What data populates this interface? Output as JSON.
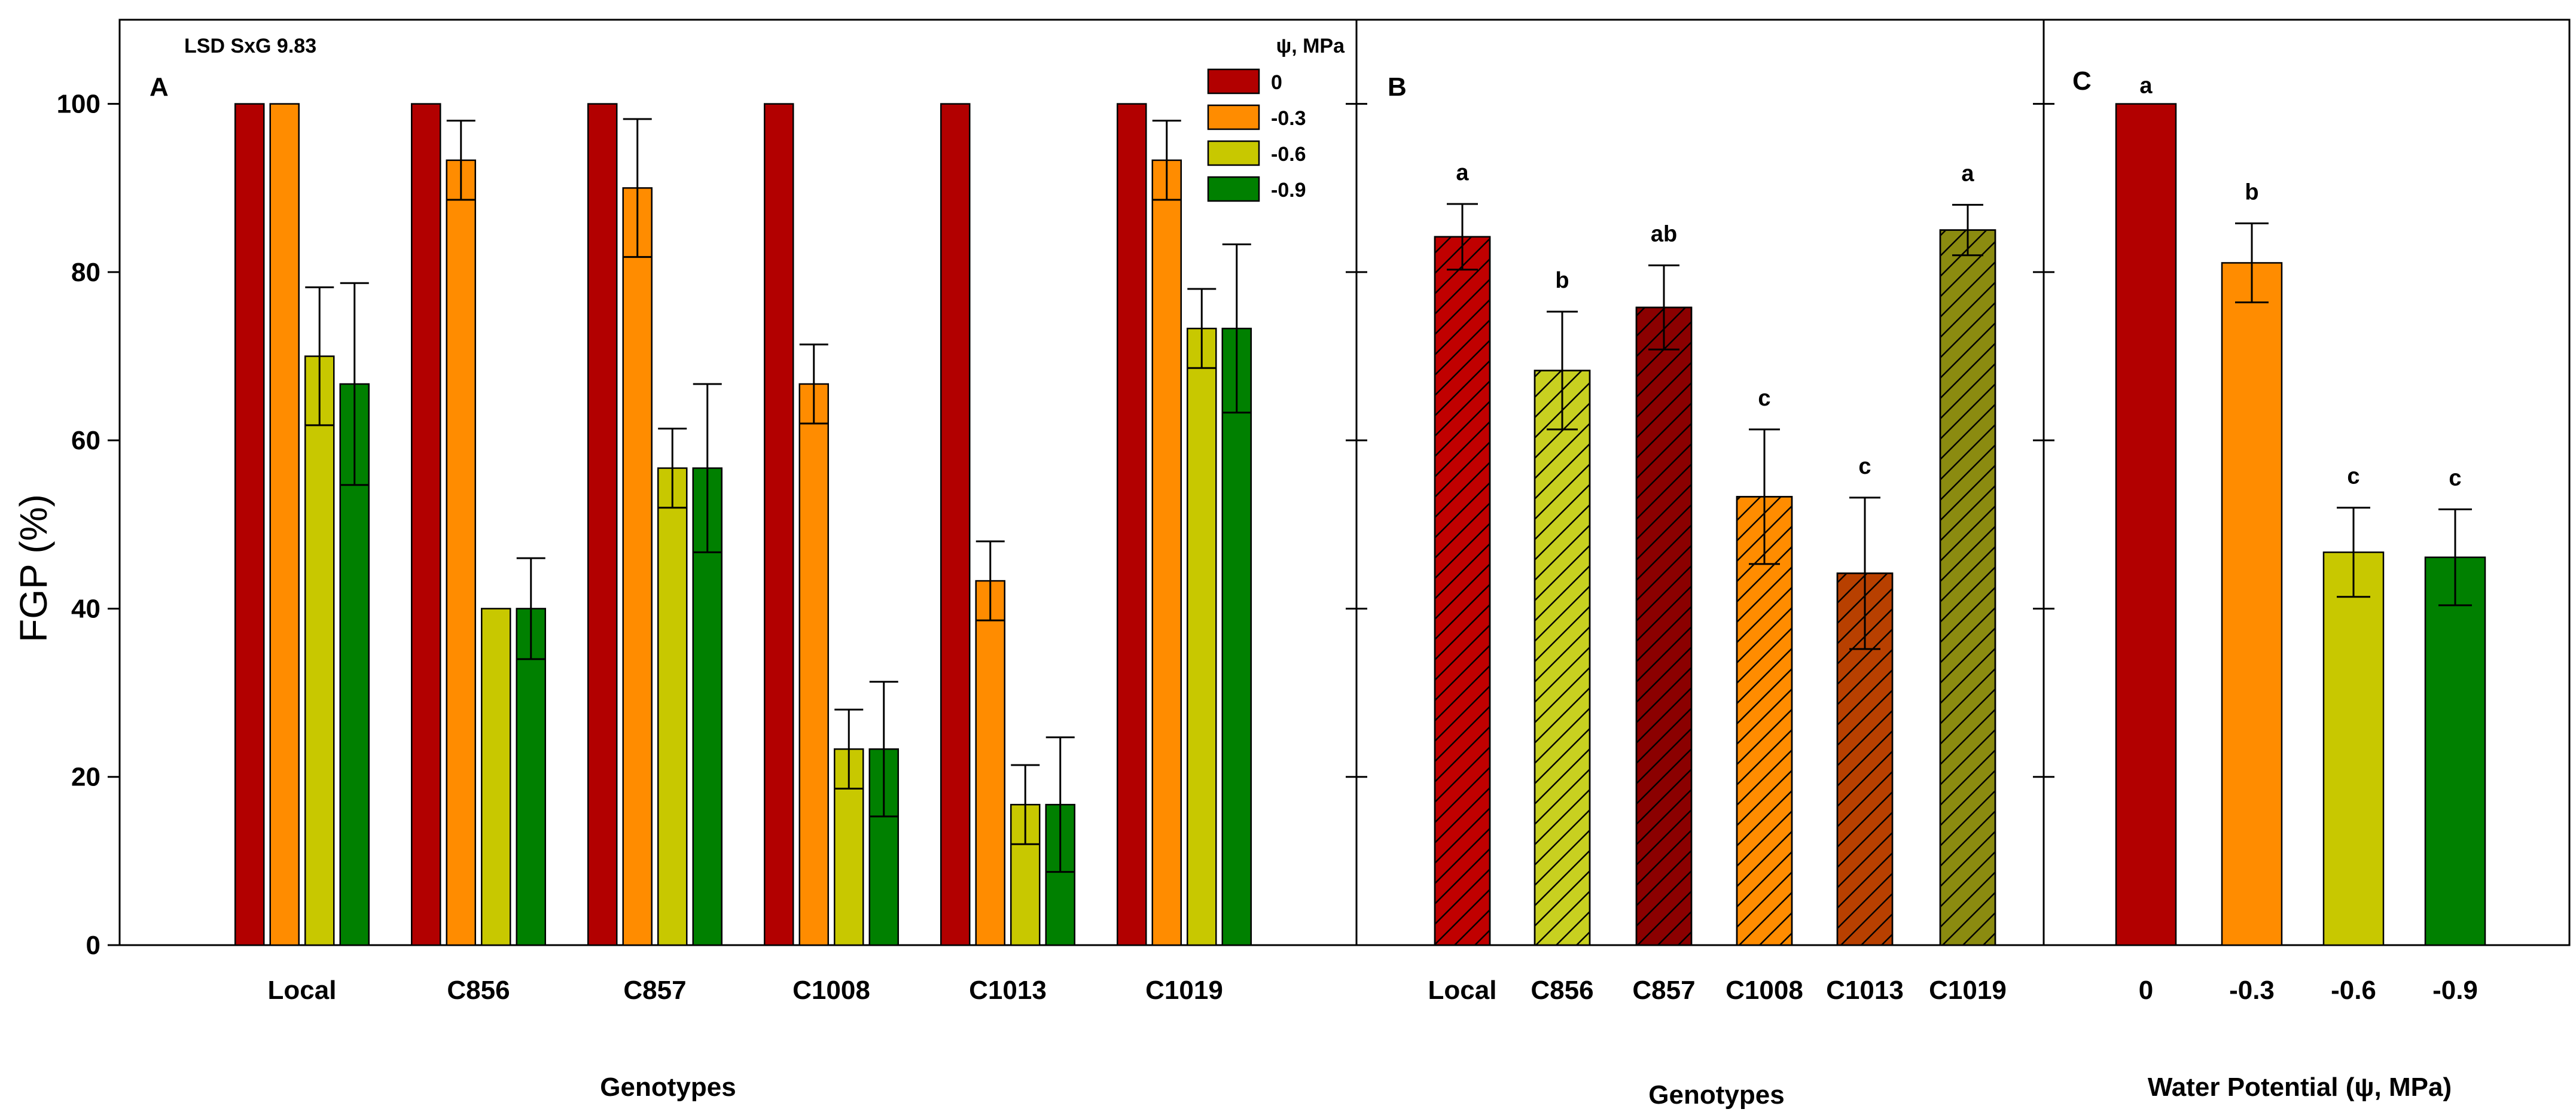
{
  "y_axis_label": "FGP (%)",
  "chart_data": [
    {
      "panel": "A",
      "type": "bar",
      "annotation": "LSD SxG 9.83",
      "xlabel": "Genotypes",
      "ylabel": "FGP (%)",
      "ylim": [
        0,
        110
      ],
      "yticks": [
        0,
        20,
        40,
        60,
        80,
        100
      ],
      "categories": [
        "Local",
        "C856",
        "C857",
        "C1008",
        "C1013",
        "C1019"
      ],
      "legend_title": "ψ, MPa",
      "legend_position": "top-right",
      "series": [
        {
          "name": "0",
          "color": "#B20000",
          "values": [
            100,
            100,
            100,
            100,
            100,
            100
          ],
          "errors": [
            0,
            0,
            0,
            0,
            0,
            0
          ]
        },
        {
          "name": "-0.3",
          "color": "#FF8C00",
          "values": [
            100,
            93.3,
            90,
            66.7,
            43.3,
            93.3
          ],
          "errors": [
            0,
            4.7,
            8.2,
            4.7,
            4.7,
            4.7
          ]
        },
        {
          "name": "-0.6",
          "color": "#C8C800",
          "values": [
            70,
            40,
            56.7,
            23.3,
            16.7,
            73.3
          ],
          "errors": [
            8.2,
            0,
            4.7,
            4.7,
            4.7,
            4.7
          ]
        },
        {
          "name": "-0.9",
          "color": "#008000",
          "values": [
            66.7,
            40,
            56.7,
            23.3,
            16.7,
            73.3
          ],
          "errors": [
            12,
            6,
            10,
            8,
            8,
            10
          ]
        }
      ]
    },
    {
      "panel": "B",
      "type": "bar",
      "xlabel": "Genotypes",
      "ylim": [
        0,
        110
      ],
      "pattern": "diagonal-hatch",
      "categories": [
        "Local",
        "C856",
        "C857",
        "C1008",
        "C1013",
        "C1019"
      ],
      "values": [
        84.2,
        68.3,
        75.8,
        53.3,
        44.2,
        85
      ],
      "errors": [
        3.9,
        7,
        5,
        8,
        9,
        3
      ],
      "colors": [
        "#C00000",
        "#C8D020",
        "#8B0000",
        "#FF8C00",
        "#B84000",
        "#8B8B10"
      ],
      "letters": [
        "a",
        "b",
        "ab",
        "c",
        "c",
        "a"
      ]
    },
    {
      "panel": "C",
      "type": "bar",
      "xlabel": "Water Potential (ψ, MPa)",
      "ylim": [
        0,
        110
      ],
      "categories": [
        "0",
        "-0.3",
        "-0.6",
        "-0.9"
      ],
      "values": [
        100,
        81.1,
        46.7,
        46.1
      ],
      "errors": [
        0,
        4.7,
        5.3,
        5.7
      ],
      "colors": [
        "#B20000",
        "#FF8C00",
        "#C8C800",
        "#008000"
      ],
      "letters": [
        "a",
        "b",
        "c",
        "c"
      ]
    }
  ]
}
